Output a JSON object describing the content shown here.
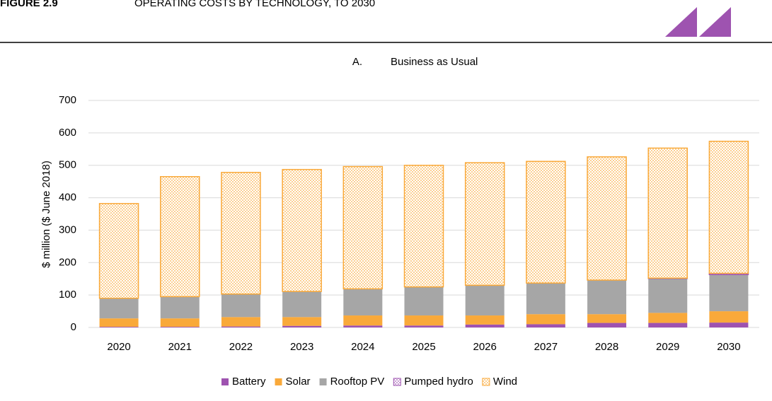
{
  "header": {
    "figure": "FIGURE 2.9",
    "title": "OPERATING COSTS BY TECHNOLOGY, TO 2030"
  },
  "chart_data": {
    "type": "stacked_bar",
    "panel_label": "A.",
    "title": "Business as Usual",
    "y_label": "$ million ($ June 2018)",
    "categories": [
      "2020",
      "2021",
      "2022",
      "2023",
      "2024",
      "2025",
      "2026",
      "2027",
      "2028",
      "2029",
      "2030"
    ],
    "series": [
      {
        "name": "Battery",
        "color": "#9e53b0",
        "values": [
          2,
          2,
          3,
          5,
          6,
          6,
          9,
          10,
          14,
          14,
          15
        ]
      },
      {
        "name": "Solar",
        "color": "#f9a93a",
        "values": [
          26,
          26,
          29,
          27,
          31,
          31,
          28,
          31,
          27,
          31,
          35
        ]
      },
      {
        "name": "Rooftop PV",
        "color": "#a6a6a6",
        "values": [
          62,
          67,
          71,
          79,
          82,
          88,
          93,
          96,
          105,
          106,
          113
        ]
      },
      {
        "name": "Pumped hydro",
        "color": "#9e53b0",
        "pattern": "checker",
        "values": [
          0,
          0,
          0,
          0,
          0,
          0,
          0,
          0,
          0,
          1,
          4
        ]
      },
      {
        "name": "Wind",
        "color": "#f9a93a",
        "pattern": "checker",
        "values": [
          292,
          370,
          375,
          376,
          377,
          375,
          378,
          375,
          380,
          401,
          407
        ]
      }
    ],
    "ylim": [
      0,
      700
    ],
    "yticks": [
      0,
      100,
      200,
      300,
      400,
      500,
      600,
      700
    ],
    "grid": true,
    "legend": "bottom"
  }
}
